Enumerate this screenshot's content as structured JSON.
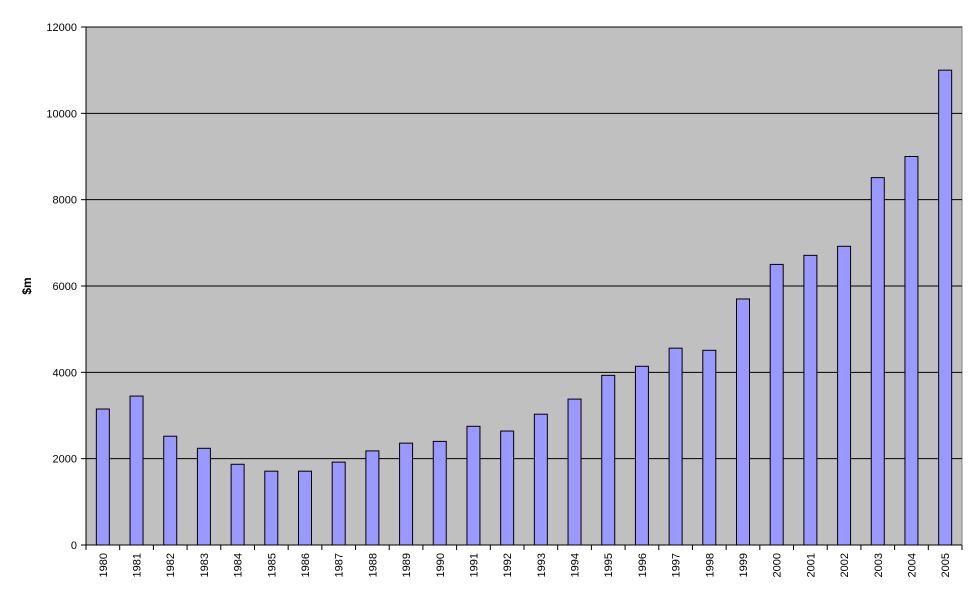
{
  "chart_data": {
    "type": "bar",
    "title": "",
    "xlabel": "",
    "ylabel": "$m",
    "ylim": [
      0,
      12000
    ],
    "yticks": [
      0,
      2000,
      4000,
      6000,
      8000,
      10000,
      12000
    ],
    "grid": true,
    "legend": "none",
    "categories": [
      "1980",
      "1981",
      "1982",
      "1983",
      "1984",
      "1985",
      "1986",
      "1987",
      "1988",
      "1989",
      "1990",
      "1991",
      "1992",
      "1993",
      "1994",
      "1995",
      "1996",
      "1997",
      "1998",
      "1999",
      "2000",
      "2001",
      "2002",
      "2003",
      "2004",
      "2005"
    ],
    "values": [
      3150,
      3450,
      2520,
      2240,
      1870,
      1710,
      1710,
      1920,
      2180,
      2360,
      2400,
      2750,
      2640,
      3030,
      3380,
      3930,
      4140,
      4560,
      4510,
      5700,
      6500,
      6710,
      6920,
      8510,
      9000,
      11000
    ],
    "colors": {
      "plot_background": "#c0c0c0",
      "bar_fill": "#9999ff",
      "bar_stroke": "#000000",
      "gridline": "#000000"
    }
  }
}
